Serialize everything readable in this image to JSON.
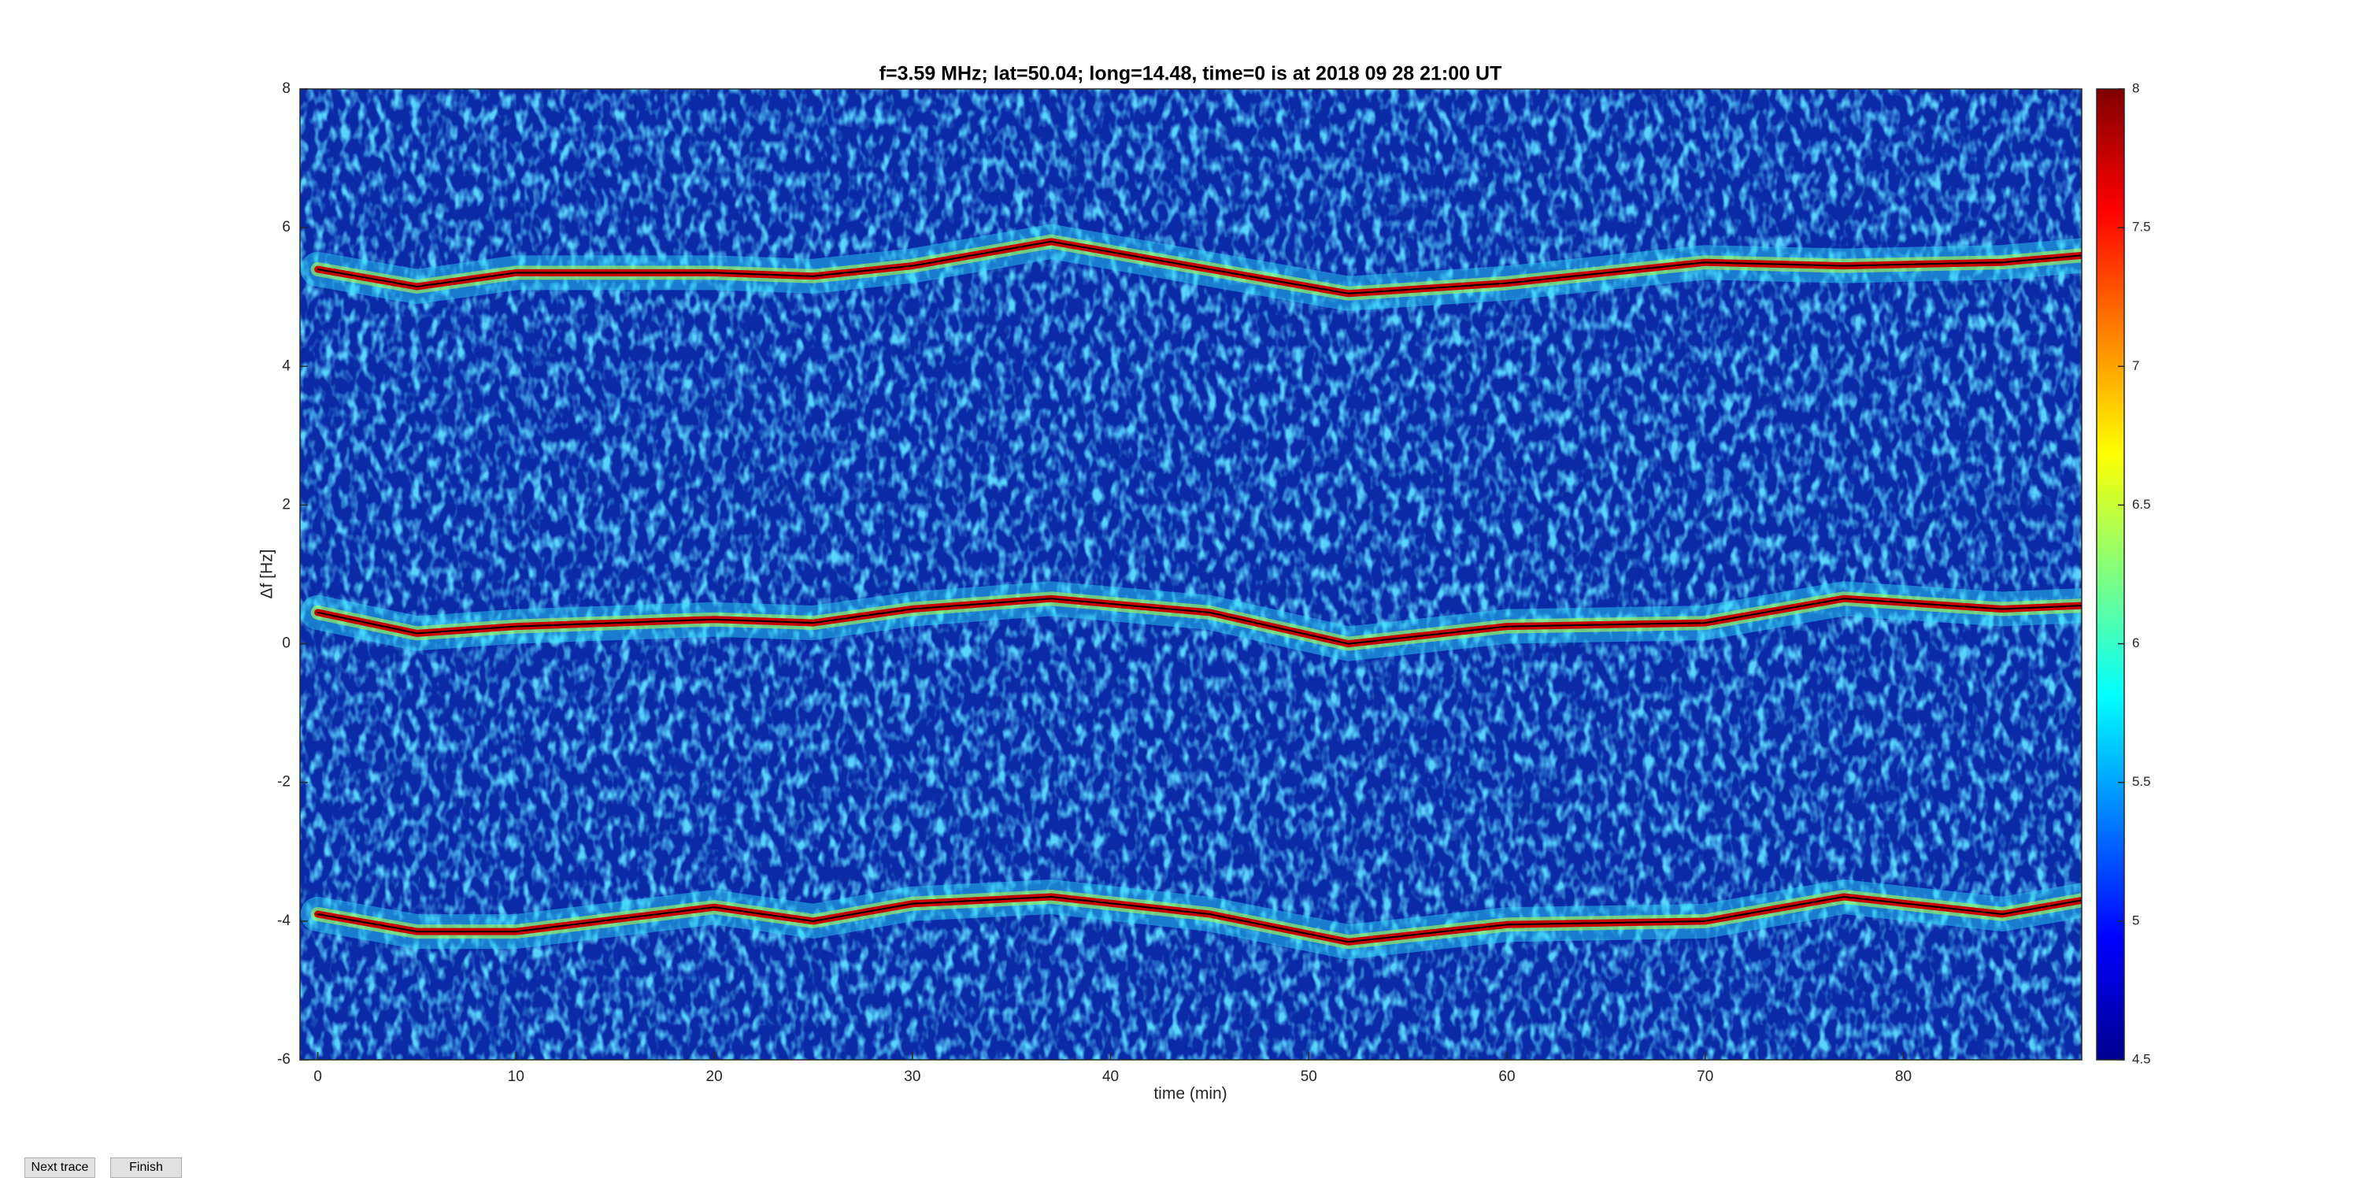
{
  "chart_data": {
    "type": "line",
    "title": "f=3.59 MHz;  lat=50.04; long=14.48, time=0 is at 2018 09 28 21:00 UT",
    "x_label": "time (min)",
    "y_label": "Δf [Hz]",
    "x": [
      0,
      5,
      10,
      20,
      25,
      30,
      37,
      45,
      52,
      60,
      70,
      77,
      85,
      89
    ],
    "series": [
      {
        "color": "#c80000",
        "values": [
          5.4,
          5.15,
          5.35,
          5.35,
          5.3,
          5.45,
          5.8,
          5.4,
          5.05,
          5.2,
          5.5,
          5.45,
          5.5,
          5.6
        ]
      },
      {
        "color": "#c80000",
        "values": [
          0.45,
          0.15,
          0.25,
          0.35,
          0.3,
          0.5,
          0.65,
          0.45,
          0.0,
          0.25,
          0.3,
          0.65,
          0.5,
          0.55
        ]
      },
      {
        "color": "#c80000",
        "values": [
          -3.9,
          -4.15,
          -4.15,
          -3.8,
          -4.0,
          -3.75,
          -3.65,
          -3.9,
          -4.3,
          -4.05,
          -4.0,
          -3.65,
          -3.9,
          -3.7
        ]
      }
    ],
    "xlim": [
      -0.9,
      89
    ],
    "ylim": [
      -6,
      8
    ],
    "xticks": [
      0,
      10,
      20,
      30,
      40,
      50,
      60,
      70,
      80
    ],
    "yticks": [
      -6,
      -4,
      -2,
      0,
      2,
      4,
      6,
      8
    ],
    "colorbar": {
      "lim": [
        4.5,
        8
      ],
      "ticks": [
        4.5,
        5,
        5.5,
        6,
        6.5,
        7,
        7.5,
        8
      ]
    }
  },
  "buttons": [
    "Next trace",
    "Finish"
  ]
}
